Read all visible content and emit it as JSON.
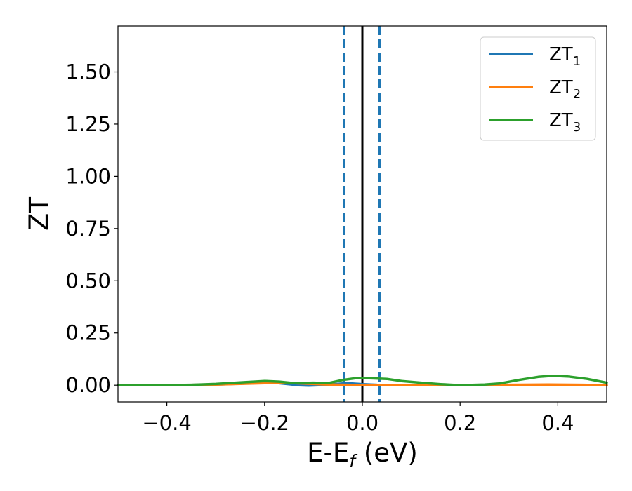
{
  "chart_data": {
    "type": "line",
    "xlabel": "E-E",
    "xlabel_sub": "f",
    "xlabel_unit": " (eV)",
    "ylabel": "ZT",
    "xlim": [
      -0.5,
      0.5
    ],
    "ylim": [
      -0.08,
      1.72
    ],
    "xticks": [
      {
        "value": -0.4,
        "label": "−0.4"
      },
      {
        "value": -0.2,
        "label": "−0.2"
      },
      {
        "value": 0.0,
        "label": "0.0"
      },
      {
        "value": 0.2,
        "label": "0.2"
      },
      {
        "value": 0.4,
        "label": "0.4"
      }
    ],
    "yticks": [
      {
        "value": 0.0,
        "label": "0.00"
      },
      {
        "value": 0.25,
        "label": "0.25"
      },
      {
        "value": 0.5,
        "label": "0.50"
      },
      {
        "value": 0.75,
        "label": "0.75"
      },
      {
        "value": 1.0,
        "label": "1.00"
      },
      {
        "value": 1.25,
        "label": "1.25"
      },
      {
        "value": 1.5,
        "label": "1.50"
      }
    ],
    "grid": false,
    "legend_position": "top-right",
    "series": [
      {
        "name": "ZT",
        "sub": "1",
        "color": "#1f77b4",
        "points": [
          [
            -0.5,
            0.0
          ],
          [
            -0.4,
            0.0
          ],
          [
            -0.3,
            0.003
          ],
          [
            -0.22,
            0.01
          ],
          [
            -0.18,
            0.012
          ],
          [
            -0.15,
            0.005
          ],
          [
            -0.13,
            0.0
          ],
          [
            -0.11,
            -0.002
          ],
          [
            -0.09,
            0.0
          ],
          [
            -0.06,
            0.005
          ],
          [
            -0.03,
            0.01
          ],
          [
            0.0,
            0.005
          ],
          [
            0.03,
            0.002
          ],
          [
            0.1,
            0.0
          ],
          [
            0.2,
            0.0
          ],
          [
            0.3,
            0.0
          ],
          [
            0.4,
            0.0
          ],
          [
            0.5,
            0.0
          ]
        ]
      },
      {
        "name": "ZT",
        "sub": "2",
        "color": "#ff7f0e",
        "points": [
          [
            -0.5,
            0.0
          ],
          [
            -0.4,
            0.0
          ],
          [
            -0.3,
            0.003
          ],
          [
            -0.2,
            0.01
          ],
          [
            -0.16,
            0.012
          ],
          [
            -0.12,
            0.008
          ],
          [
            -0.08,
            0.004
          ],
          [
            -0.04,
            0.002
          ],
          [
            0.0,
            0.001
          ],
          [
            0.05,
            0.001
          ],
          [
            0.1,
            0.0
          ],
          [
            0.2,
            0.0
          ],
          [
            0.3,
            0.002
          ],
          [
            0.38,
            0.003
          ],
          [
            0.45,
            0.002
          ],
          [
            0.5,
            0.0
          ]
        ]
      },
      {
        "name": "ZT",
        "sub": "3",
        "color": "#2ca02c",
        "points": [
          [
            -0.5,
            0.0
          ],
          [
            -0.4,
            0.0
          ],
          [
            -0.35,
            0.002
          ],
          [
            -0.3,
            0.006
          ],
          [
            -0.25,
            0.013
          ],
          [
            -0.2,
            0.02
          ],
          [
            -0.17,
            0.017
          ],
          [
            -0.14,
            0.01
          ],
          [
            -0.1,
            0.012
          ],
          [
            -0.07,
            0.01
          ],
          [
            -0.04,
            0.025
          ],
          [
            -0.01,
            0.035
          ],
          [
            0.02,
            0.033
          ],
          [
            0.05,
            0.03
          ],
          [
            0.08,
            0.02
          ],
          [
            0.12,
            0.012
          ],
          [
            0.16,
            0.005
          ],
          [
            0.2,
            0.0
          ],
          [
            0.25,
            0.003
          ],
          [
            0.28,
            0.008
          ],
          [
            0.32,
            0.025
          ],
          [
            0.36,
            0.04
          ],
          [
            0.39,
            0.045
          ],
          [
            0.42,
            0.042
          ],
          [
            0.46,
            0.03
          ],
          [
            0.5,
            0.012
          ]
        ]
      }
    ],
    "vlines": [
      {
        "x": 0.0,
        "color": "#000000",
        "style": "solid"
      },
      {
        "x": -0.037,
        "color": "#1f77b4",
        "style": "dashed"
      },
      {
        "x": 0.035,
        "color": "#1f77b4",
        "style": "dashed"
      }
    ]
  }
}
